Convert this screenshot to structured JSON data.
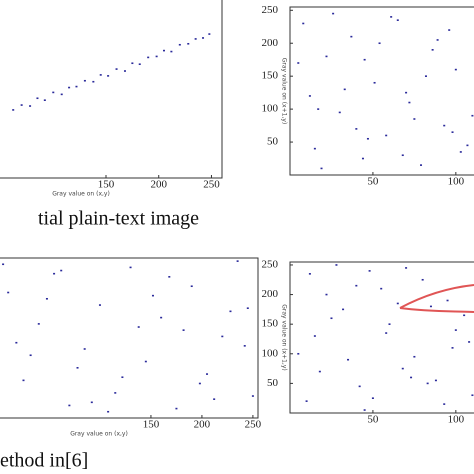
{
  "chart_data": [
    {
      "type": "scatter",
      "caption": "tial plain-text image",
      "x_label": "Gray value on (x,y)",
      "color": "#2a2a9a",
      "xlim": [
        40,
        260
      ],
      "ylim": [
        0,
        255
      ],
      "xticks": [
        150,
        200,
        250
      ],
      "x": [
        62,
        70,
        78,
        85,
        92,
        100,
        108,
        115,
        122,
        130,
        138,
        145,
        152,
        160,
        168,
        175,
        182,
        190,
        198,
        205,
        212,
        220,
        228,
        235,
        242,
        248
      ],
      "y": [
        70,
        75,
        74,
        82,
        80,
        88,
        86,
        93,
        94,
        100,
        99,
        106,
        105,
        112,
        110,
        118,
        117,
        124,
        125,
        131,
        130,
        137,
        138,
        143,
        144,
        148
      ]
    },
    {
      "type": "scatter",
      "y_label": "Gray value on (x+1,y)",
      "color": "#2a2a9a",
      "xlim": [
        0,
        120
      ],
      "ylim": [
        0,
        255
      ],
      "xticks": [
        50,
        100
      ],
      "yticks": [
        50,
        100,
        150,
        200,
        250
      ],
      "x": [
        8,
        15,
        22,
        30,
        37,
        44,
        51,
        58,
        65,
        72,
        79,
        86,
        93,
        100,
        107,
        12,
        26,
        40,
        54,
        68,
        82,
        96,
        110,
        5,
        19,
        33,
        47,
        61,
        75,
        89,
        103,
        17,
        45,
        70,
        98
      ],
      "y": [
        230,
        40,
        180,
        95,
        210,
        25,
        140,
        60,
        235,
        110,
        15,
        190,
        75,
        160,
        45,
        120,
        245,
        70,
        200,
        30,
        150,
        220,
        90,
        170,
        10,
        130,
        55,
        240,
        85,
        205,
        35,
        100,
        175,
        125,
        65
      ]
    },
    {
      "type": "scatter",
      "caption": "ethod in[6]",
      "x_label": "Gray value on (x,y)",
      "color": "#2a2a9a",
      "xlim": [
        0,
        255
      ],
      "ylim": [
        0,
        255
      ],
      "xticks": [
        150,
        200,
        250
      ],
      "x": [
        10,
        25,
        40,
        55,
        70,
        85,
        100,
        115,
        130,
        145,
        160,
        175,
        190,
        205,
        220,
        235,
        250,
        18,
        48,
        78,
        108,
        138,
        168,
        198,
        228,
        32,
        62,
        92,
        122,
        152,
        182,
        212,
        242,
        5,
        245
      ],
      "y": [
        200,
        60,
        150,
        230,
        20,
        110,
        180,
        40,
        240,
        90,
        160,
        15,
        210,
        70,
        130,
        250,
        35,
        120,
        190,
        80,
        10,
        145,
        225,
        55,
        170,
        100,
        235,
        25,
        65,
        195,
        140,
        30,
        115,
        245,
        175
      ]
    },
    {
      "type": "scatter",
      "y_label": "Gray value on (x+1,y)",
      "color": "#2a2a9a",
      "xlim": [
        0,
        120
      ],
      "ylim": [
        0,
        255
      ],
      "xticks": [
        50,
        100
      ],
      "yticks": [
        50,
        100,
        150,
        200,
        250
      ],
      "x": [
        10,
        22,
        35,
        48,
        60,
        73,
        85,
        98,
        110,
        15,
        28,
        42,
        55,
        68,
        80,
        93,
        105,
        5,
        18,
        32,
        45,
        58,
        70,
        83,
        95,
        108,
        25,
        50,
        75,
        100,
        40,
        65,
        88,
        12,
        112
      ],
      "y": [
        20,
        200,
        90,
        240,
        150,
        60,
        180,
        110,
        30,
        130,
        250,
        45,
        210,
        75,
        225,
        15,
        165,
        100,
        70,
        175,
        5,
        135,
        245,
        50,
        190,
        120,
        160,
        25,
        95,
        140,
        215,
        185,
        55,
        235,
        80
      ]
    }
  ]
}
